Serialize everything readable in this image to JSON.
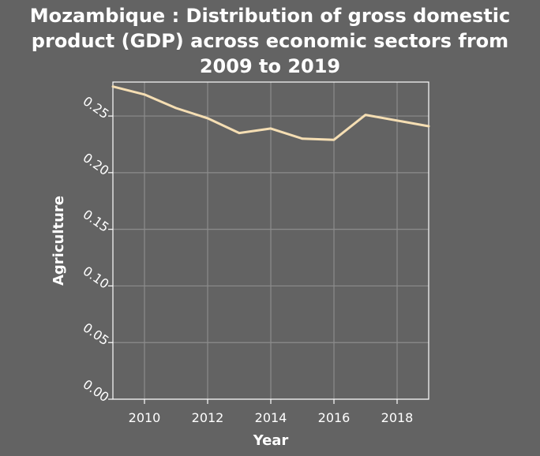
{
  "chart_data": {
    "type": "line",
    "title_lines": [
      "Mozambique : Distribution of gross domestic",
      "product (GDP) across economic sectors from",
      "2009 to 2019"
    ],
    "xlabel": "Year",
    "ylabel": "Agriculture",
    "xlim": [
      2009,
      2019
    ],
    "ylim": [
      0,
      0.28
    ],
    "x_ticks": [
      2010,
      2012,
      2014,
      2016,
      2018
    ],
    "y_ticks": [
      0.0,
      0.05,
      0.1,
      0.15,
      0.2,
      0.25
    ],
    "y_tick_labels": [
      "0.00",
      "0.05",
      "0.10",
      "0.15",
      "0.20",
      "0.25"
    ],
    "grid": true,
    "series": [
      {
        "x": [
          2009,
          2010,
          2011,
          2012,
          2013,
          2014,
          2015,
          2016,
          2017,
          2018,
          2019
        ],
        "values": [
          0.276,
          0.269,
          0.257,
          0.248,
          0.235,
          0.239,
          0.23,
          0.229,
          0.251,
          0.246,
          0.241
        ]
      }
    ],
    "colors": {
      "background": "#636363",
      "line": "#f5deb3",
      "grid": "#8c8c8c",
      "text": "#ffffff"
    }
  }
}
